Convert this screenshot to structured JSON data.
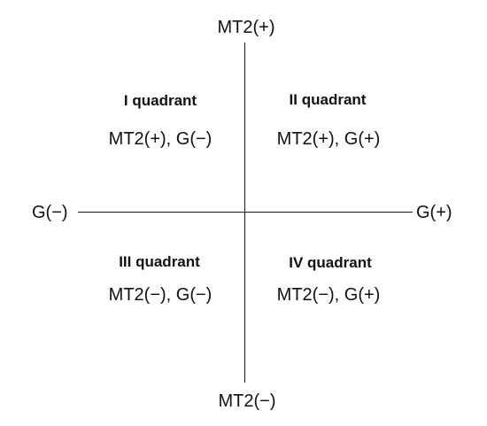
{
  "axes": {
    "top": "MT2(+)",
    "bottom": "MT2(−)",
    "left": "G(−)",
    "right": "G(+)"
  },
  "quadrants": [
    {
      "title": "I quadrant",
      "signs": "MT2(+), G(−)"
    },
    {
      "title": "II quadrant",
      "signs": "MT2(+), G(+)"
    },
    {
      "title": "III quadrant",
      "signs": "MT2(−), G(−)"
    },
    {
      "title": "IV quadrant",
      "signs": "MT2(−), G(+)"
    }
  ],
  "colors": {
    "line": "#1a1a1a",
    "text": "#111111",
    "background": "#ffffff"
  }
}
